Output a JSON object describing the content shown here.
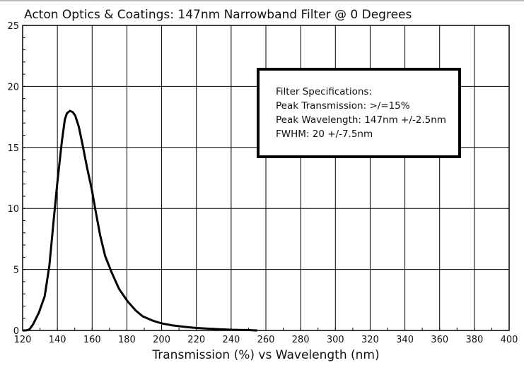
{
  "chart_data": {
    "type": "line",
    "title": "Acton Optics & Coatings: 147nm Narrowband Filter @ 0 Degrees",
    "xlabel": "Transmission (%) vs Wavelength (nm)",
    "ylabel": "",
    "xlim": [
      120,
      400
    ],
    "ylim": [
      0,
      25
    ],
    "xticks": [
      120,
      140,
      160,
      180,
      200,
      220,
      240,
      260,
      280,
      300,
      320,
      340,
      360,
      380,
      400
    ],
    "yticks": [
      0,
      5,
      10,
      15,
      20,
      25
    ],
    "grid": true,
    "series": [
      {
        "x": [
          120,
          122,
          124,
          126,
          129.3,
          132.7,
          135.4,
          138.1,
          140.1,
          142.6,
          144.3,
          145.5,
          147.2,
          148.8,
          150.3,
          152.3,
          154.4,
          157,
          159.9,
          162,
          164.6,
          167.5,
          171.4,
          175.5,
          180.3,
          185,
          189.1,
          195,
          200,
          206,
          213.6,
          220,
          230,
          240,
          250,
          255
        ],
        "y": [
          0,
          0,
          0.1,
          0.5,
          1.45,
          2.8,
          5.3,
          9.4,
          12.3,
          15.5,
          17.3,
          17.8,
          18.0,
          17.9,
          17.6,
          16.7,
          15.3,
          13.4,
          11.5,
          9.8,
          7.8,
          6.1,
          4.7,
          3.4,
          2.4,
          1.65,
          1.16,
          0.8,
          0.58,
          0.42,
          0.29,
          0.2,
          0.12,
          0.06,
          0.03,
          0
        ]
      }
    ],
    "annotation": {
      "lines": [
        "Filter Specifications:",
        "Peak Transmission: >/=15%",
        "Peak Wavelength: 147nm +/-2.5nm",
        "FWHM: 20 +/-7.5nm"
      ]
    }
  }
}
